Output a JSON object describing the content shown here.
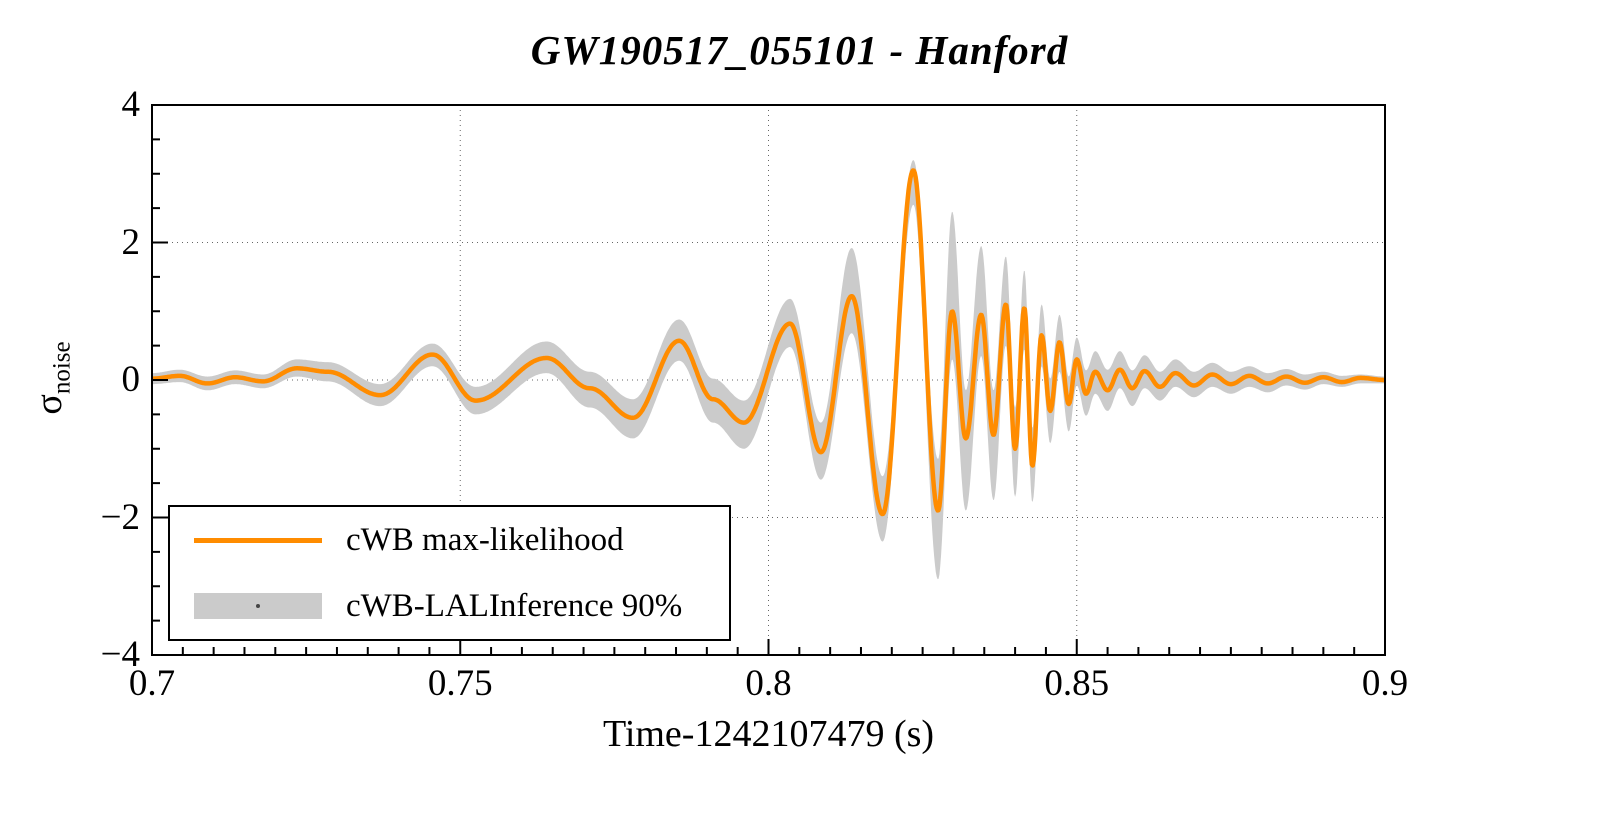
{
  "title": "GW190517_055101 - Hanford",
  "colors": {
    "line": "#ff8c00",
    "band": "#cbcbcb",
    "grid": "#666666",
    "frame": "#000000"
  },
  "legend": {
    "entries": [
      {
        "label": "cWB max-likelihood",
        "type": "line"
      },
      {
        "label": "cWB-LALInference 90%",
        "type": "band"
      }
    ]
  },
  "chart_data": {
    "type": "line",
    "title": "GW190517_055101 - Hanford",
    "xlabel": "Time-1242107479 (s)",
    "ylabel": "σ_noise",
    "ylabel_parts": {
      "base": "σ",
      "sub": "noise"
    },
    "xlim": [
      0.7,
      0.9
    ],
    "ylim": [
      -4,
      4
    ],
    "x_ticks": [
      0.7,
      0.75,
      0.8,
      0.85,
      0.9
    ],
    "x_tick_labels": [
      "0.7",
      "0.75",
      "0.8",
      "0.85",
      "0.9"
    ],
    "y_ticks": [
      4,
      2,
      0,
      -2,
      -4
    ],
    "y_tick_labels": [
      "4",
      "2",
      "0",
      "−2",
      "−4"
    ],
    "x_minor_step": 0.005,
    "y_minor_step": 0.5,
    "grid": "dotted",
    "legend_position": "bottom-left",
    "interpolation": "cosine",
    "samples_format": [
      "t",
      "y",
      "band_lower",
      "band_upper"
    ],
    "samples": [
      [
        0.7,
        0.02,
        -0.06,
        0.1
      ],
      [
        0.7045,
        0.06,
        -0.03,
        0.15
      ],
      [
        0.709,
        -0.05,
        -0.15,
        0.05
      ],
      [
        0.7135,
        0.04,
        -0.06,
        0.14
      ],
      [
        0.718,
        -0.02,
        -0.12,
        0.08
      ],
      [
        0.7235,
        0.17,
        0.05,
        0.3
      ],
      [
        0.7285,
        0.12,
        -0.02,
        0.26
      ],
      [
        0.737,
        -0.22,
        -0.38,
        -0.06
      ],
      [
        0.7455,
        0.37,
        0.2,
        0.53
      ],
      [
        0.7525,
        -0.3,
        -0.5,
        -0.1
      ],
      [
        0.764,
        0.32,
        0.1,
        0.56
      ],
      [
        0.771,
        -0.12,
        -0.4,
        0.12
      ],
      [
        0.778,
        -0.55,
        -0.85,
        -0.28
      ],
      [
        0.7855,
        0.57,
        0.28,
        0.88
      ],
      [
        0.791,
        -0.28,
        -0.62,
        0.02
      ],
      [
        0.796,
        -0.62,
        -1.0,
        -0.3
      ],
      [
        0.8035,
        0.82,
        0.48,
        1.18
      ],
      [
        0.8085,
        -1.05,
        -1.45,
        -0.62
      ],
      [
        0.8135,
        1.22,
        0.68,
        1.92
      ],
      [
        0.8185,
        -1.95,
        -2.35,
        -1.4
      ],
      [
        0.8235,
        3.05,
        2.55,
        3.2
      ],
      [
        0.8275,
        -1.9,
        -2.9,
        -1.15
      ],
      [
        0.8298,
        1.0,
        0.3,
        2.45
      ],
      [
        0.832,
        -0.85,
        -1.9,
        -0.15
      ],
      [
        0.8345,
        0.95,
        0.35,
        1.95
      ],
      [
        0.8365,
        -0.8,
        -1.75,
        -0.15
      ],
      [
        0.8385,
        1.1,
        0.5,
        1.8
      ],
      [
        0.84,
        -1.0,
        -1.7,
        -0.4
      ],
      [
        0.8415,
        1.05,
        0.45,
        1.6
      ],
      [
        0.8428,
        -1.25,
        -1.78,
        -0.7
      ],
      [
        0.8443,
        0.65,
        0.2,
        1.1
      ],
      [
        0.8457,
        -0.45,
        -0.92,
        0.02
      ],
      [
        0.8472,
        0.55,
        0.12,
        0.95
      ],
      [
        0.8487,
        -0.35,
        -0.75,
        0.05
      ],
      [
        0.85,
        0.3,
        -0.08,
        0.62
      ],
      [
        0.8515,
        -0.2,
        -0.52,
        0.14
      ],
      [
        0.853,
        0.12,
        -0.2,
        0.42
      ],
      [
        0.855,
        -0.15,
        -0.45,
        0.15
      ],
      [
        0.857,
        0.15,
        -0.12,
        0.42
      ],
      [
        0.859,
        -0.12,
        -0.38,
        0.14
      ],
      [
        0.861,
        0.13,
        -0.12,
        0.36
      ],
      [
        0.8635,
        -0.1,
        -0.3,
        0.12
      ],
      [
        0.866,
        0.1,
        -0.1,
        0.3
      ],
      [
        0.869,
        -0.08,
        -0.25,
        0.12
      ],
      [
        0.872,
        0.08,
        -0.1,
        0.25
      ],
      [
        0.875,
        -0.06,
        -0.2,
        0.12
      ],
      [
        0.878,
        0.06,
        -0.1,
        0.2
      ],
      [
        0.881,
        -0.05,
        -0.18,
        0.1
      ],
      [
        0.884,
        0.05,
        -0.08,
        0.16
      ],
      [
        0.887,
        -0.04,
        -0.14,
        0.08
      ],
      [
        0.89,
        0.04,
        -0.06,
        0.12
      ],
      [
        0.893,
        -0.03,
        -0.1,
        0.06
      ],
      [
        0.896,
        0.03,
        -0.05,
        0.08
      ],
      [
        0.9,
        0.0,
        -0.05,
        0.05
      ]
    ],
    "series": [
      {
        "name": "cWB max-likelihood",
        "type": "line",
        "color": "#ff8c00"
      },
      {
        "name": "cWB-LALInference 90%",
        "type": "band",
        "color": "#cbcbcb"
      }
    ]
  }
}
